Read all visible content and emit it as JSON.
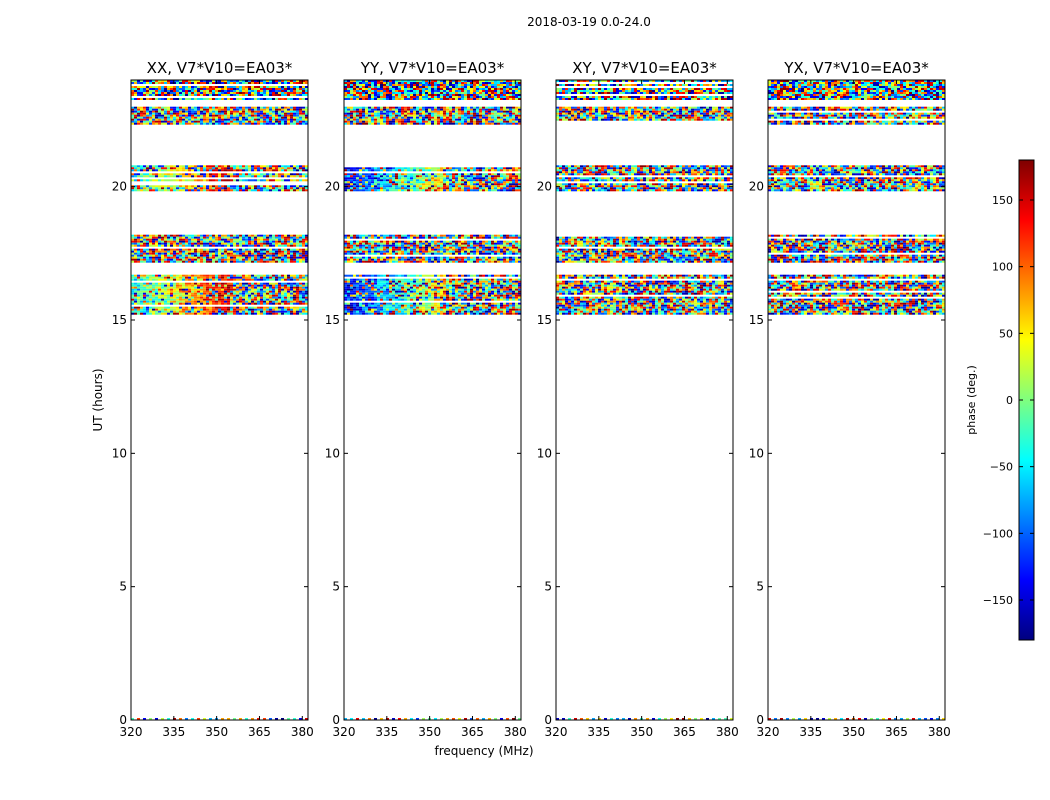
{
  "figure": {
    "suptitle": "2018-03-19 0.0-24.0",
    "xlabel": "frequency (MHz)",
    "ylabel": "UT (hours)"
  },
  "chart_data": [
    {
      "type": "heatmap",
      "title": "XX, V7*V10=EA03*",
      "xlim": [
        320,
        382
      ],
      "ylim": [
        0,
        24
      ],
      "xticks": [
        320,
        335,
        350,
        365,
        380
      ],
      "yticks": [
        0,
        5,
        10,
        15,
        20
      ],
      "data_bands_hours": [
        [
          15.2,
          16.7
        ],
        [
          17.2,
          18.2
        ],
        [
          19.9,
          20.8
        ],
        [
          22.4,
          23.0
        ],
        [
          23.3,
          24.0
        ]
      ]
    },
    {
      "type": "heatmap",
      "title": "YY, V7*V10=EA03*",
      "xlim": [
        320,
        382
      ],
      "ylim": [
        0,
        24
      ],
      "xticks": [
        320,
        335,
        350,
        365,
        380
      ],
      "yticks": [
        0,
        5,
        10,
        15,
        20
      ],
      "data_bands_hours": [
        [
          15.2,
          16.7
        ],
        [
          17.2,
          18.2
        ],
        [
          19.9,
          20.8
        ],
        [
          22.4,
          23.0
        ],
        [
          23.3,
          24.0
        ]
      ]
    },
    {
      "type": "heatmap",
      "title": "XY, V7*V10=EA03*",
      "xlim": [
        320,
        382
      ],
      "ylim": [
        0,
        24
      ],
      "xticks": [
        320,
        335,
        350,
        365,
        380
      ],
      "yticks": [
        0,
        5,
        10,
        15,
        20
      ],
      "data_bands_hours": [
        [
          15.2,
          16.7
        ],
        [
          17.2,
          18.2
        ],
        [
          19.9,
          20.8
        ],
        [
          22.4,
          23.0
        ],
        [
          23.3,
          24.0
        ]
      ]
    },
    {
      "type": "heatmap",
      "title": "YX, V7*V10=EA03*",
      "xlim": [
        320,
        382
      ],
      "ylim": [
        0,
        24
      ],
      "xticks": [
        320,
        335,
        350,
        365,
        380
      ],
      "yticks": [
        0,
        5,
        10,
        15,
        20
      ],
      "data_bands_hours": [
        [
          15.2,
          16.7
        ],
        [
          17.2,
          18.2
        ],
        [
          19.9,
          20.8
        ],
        [
          22.4,
          23.0
        ],
        [
          23.3,
          24.0
        ]
      ]
    }
  ],
  "colorbar": {
    "label": "phase (deg.)",
    "range": [
      -180,
      180
    ],
    "ticks": [
      150,
      100,
      50,
      0,
      -50,
      -100,
      -150
    ],
    "tick_labels": [
      "150",
      "100",
      "50",
      "0",
      "−50",
      "−100",
      "−150"
    ],
    "colormap": "jet",
    "colors": [
      "#00007f",
      "#0000ff",
      "#007fff",
      "#00ffff",
      "#7fff7f",
      "#ffff00",
      "#ff7f00",
      "#ff0000",
      "#7f0000"
    ]
  }
}
